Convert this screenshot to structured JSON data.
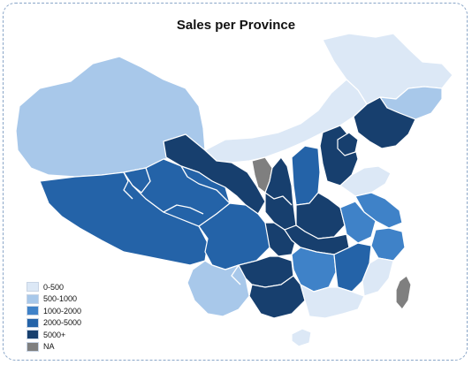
{
  "title": "Sales per Province",
  "colors": {
    "c1": "#dce8f6",
    "c2": "#a8c8ea",
    "c3": "#3f82c8",
    "c4": "#2463a8",
    "c5": "#173f6e",
    "na": "#7f7f7f",
    "border": "#ffffff",
    "frame": "#8aa6c8"
  },
  "legend": {
    "items": [
      {
        "label": "0-500",
        "color": "#dce8f6"
      },
      {
        "label": "500-1000",
        "color": "#a8c8ea"
      },
      {
        "label": "1000-2000",
        "color": "#3f82c8"
      },
      {
        "label": "2000-5000",
        "color": "#2463a8"
      },
      {
        "label": "5000+",
        "color": "#173f6e"
      },
      {
        "label": "NA",
        "color": "#7f7f7f"
      }
    ]
  }
}
